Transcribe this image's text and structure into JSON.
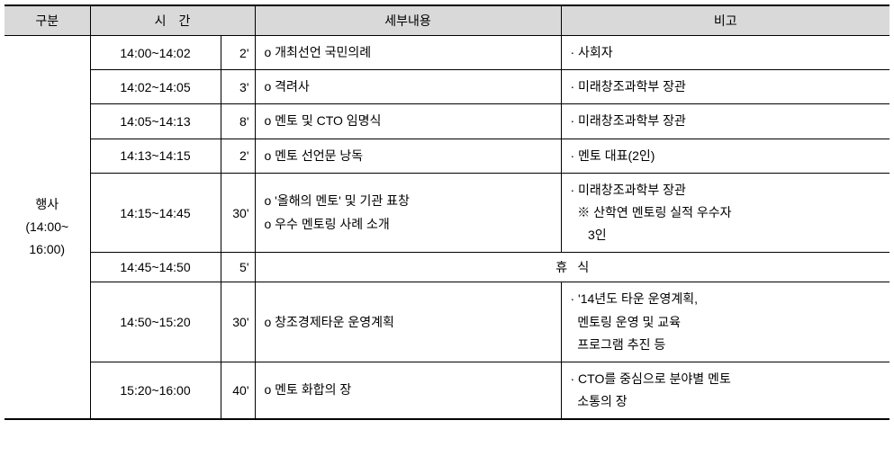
{
  "headers": {
    "gubun": "구분",
    "time": "시간",
    "detail": "세부내용",
    "note": "비고"
  },
  "category": {
    "label": "행사",
    "time": "(14:00~\n16:00)"
  },
  "rows": [
    {
      "time": "14:00~14:02",
      "dur": "2'",
      "detail": [
        "o 개최선언 국민의례"
      ],
      "note": [
        "· 사회자"
      ]
    },
    {
      "time": "14:02~14:05",
      "dur": "3'",
      "detail": [
        "o 격려사"
      ],
      "note": [
        "· 미래창조과학부 장관"
      ]
    },
    {
      "time": "14:05~14:13",
      "dur": "8'",
      "detail": [
        "o 멘토 및 CTO 임명식"
      ],
      "note": [
        "· 미래창조과학부 장관"
      ]
    },
    {
      "time": "14:13~14:15",
      "dur": "2'",
      "detail": [
        "o 멘토 선언문 낭독"
      ],
      "note": [
        "· 멘토 대표(2인)"
      ]
    },
    {
      "time": "14:15~14:45",
      "dur": "30'",
      "detail": [
        "o '올해의 멘토' 및 기관 표창",
        "o 우수 멘토링 사례 소개"
      ],
      "note": [
        "· 미래창조과학부 장관",
        "  ※ 산학연 멘토링 실적 우수자",
        "     3인"
      ]
    },
    {
      "time": "14:45~14:50",
      "dur": "5'",
      "break": true,
      "break_label": "휴식"
    },
    {
      "time": "14:50~15:20",
      "dur": "30'",
      "detail": [
        "o 창조경제타운 운영계획"
      ],
      "note": [
        "· '14년도 타운 운영계획,",
        "  멘토링 운영 및 교육",
        "  프로그램 추진 등"
      ]
    },
    {
      "time": "15:20~16:00",
      "dur": "40'",
      "detail": [
        "o 멘토 화합의 장"
      ],
      "note": [
        "· CTO를 중심으로 분야별 멘토",
        "  소통의 장"
      ]
    }
  ]
}
